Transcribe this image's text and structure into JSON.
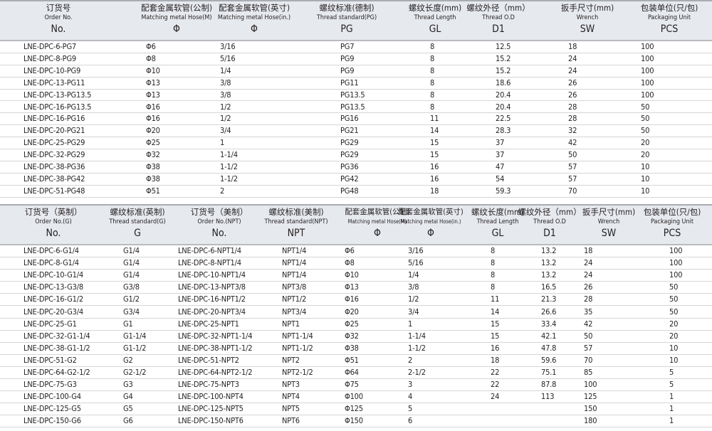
{
  "table1": {
    "headers": [
      {
        "zh": "订货号",
        "en": "Order No.",
        "sym": "No."
      },
      {
        "zh": "配套金属软管(公制)",
        "en": "Matching metal Hose(M)",
        "sym": "Φ"
      },
      {
        "zh": "配套金属软管(英寸)",
        "en": "Matching metal Hose(in.)",
        "sym": "Φ"
      },
      {
        "zh": "螺纹标准(德制)",
        "en": "Thread standard(PG)",
        "sym": "PG"
      },
      {
        "zh": "螺纹长度(mm)",
        "en": "Thread  Length",
        "sym": "GL"
      },
      {
        "zh": "螺纹外径（mm）",
        "en": "Thread O.D",
        "sym": "D1"
      },
      {
        "zh": "扳手尺寸(mm)",
        "en": "Wrench",
        "sym": "SW"
      },
      {
        "zh": "包装单位(只/包)",
        "en": "Packaging Unit",
        "sym": "PCS"
      }
    ],
    "rows": [
      [
        "LNE-DPC-6-PG7",
        "Φ6",
        "3/16",
        "PG7",
        "8",
        "12.5",
        "18",
        "100"
      ],
      [
        "LNE-DPC-8-PG9",
        "Φ8",
        "5/16",
        "PG9",
        "8",
        "15.2",
        "24",
        "100"
      ],
      [
        "LNE-DPC-10-PG9",
        "Φ10",
        "1/4",
        "PG9",
        "8",
        "15.2",
        "24",
        "100"
      ],
      [
        "LNE-DPC-13-PG11",
        "Φ13",
        "3/8",
        "PG11",
        "8",
        "18.6",
        "26",
        "100"
      ],
      [
        "LNE-DPC-13-PG13.5",
        "Φ13",
        "3/8",
        "PG13.5",
        "8",
        "20.4",
        "26",
        "100"
      ],
      [
        "LNE-DPC-16-PG13.5",
        "Φ16",
        "1/2",
        "PG13.5",
        "8",
        "20.4",
        "28",
        "50"
      ],
      [
        "LNE-DPC-16-PG16",
        "Φ16",
        "1/2",
        "PG16",
        "11",
        "22.5",
        "28",
        "50"
      ],
      [
        "LNE-DPC-20-PG21",
        "Φ20",
        "3/4",
        "PG21",
        "14",
        "28.3",
        "32",
        "50"
      ],
      [
        "LNE-DPC-25-PG29",
        "Φ25",
        "1",
        "PG29",
        "15",
        "37",
        "42",
        "20"
      ],
      [
        "LNE-DPC-32-PG29",
        "Φ32",
        "1-1/4",
        "PG29",
        "15",
        "37",
        "50",
        "20"
      ],
      [
        "LNE-DPC-38-PG36",
        "Φ38",
        "1-1/2",
        "PG36",
        "16",
        "47",
        "57",
        "10"
      ],
      [
        "LNE-DPC-38-PG42",
        "Φ38",
        "1-1/2",
        "PG42",
        "16",
        "54",
        "57",
        "10"
      ],
      [
        "LNE-DPC-51-PG48",
        "Φ51",
        "2",
        "PG48",
        "18",
        "59.3",
        "70",
        "10"
      ]
    ]
  },
  "table2": {
    "headers": [
      {
        "zh": "订货号（英制）",
        "en": "Order No.(G)",
        "sym": "No."
      },
      {
        "zh": "螺纹标准(英制)",
        "en": "Thread standard(G)",
        "sym": "G"
      },
      {
        "zh": "订货号（美制）",
        "en": "Order No.(NPT)",
        "sym": "No."
      },
      {
        "zh": "螺纹标准(美制)",
        "en": "Thread standard(NPT)",
        "sym": "NPT"
      },
      {
        "zh": "配套金属软管(公制)",
        "en": "Matching metal Hose(M)",
        "sym": "Φ"
      },
      {
        "zh": "配套金属软管(英寸)",
        "en": "Matching metal Hose(in.)",
        "sym": "Φ"
      },
      {
        "zh": "螺纹长度(mm)",
        "en": "Thread  Length",
        "sym": "GL"
      },
      {
        "zh": "螺纹外径（mm）",
        "en": "Thread O.D",
        "sym": "D1"
      },
      {
        "zh": "扳手尺寸(mm)",
        "en": "Wrench",
        "sym": "SW"
      },
      {
        "zh": "包装单位(只/包)",
        "en": "Packaging Unit",
        "sym": "PCS"
      }
    ],
    "rows": [
      [
        "LNE-DPC-6-G1/4",
        "G1/4",
        "LNE-DPC-6-NPT1/4",
        "NPT1/4",
        "Φ6",
        "3/16",
        "8",
        "13.2",
        "18",
        "100"
      ],
      [
        "LNE-DPC-8-G1/4",
        "G1/4",
        "LNE-DPC-8-NPT1/4",
        "NPT1/4",
        "Φ8",
        "5/16",
        "8",
        "13.2",
        "24",
        "100"
      ],
      [
        "LNE-DPC-10-G1/4",
        "G1/4",
        "LNE-DPC-10-NPT1/4",
        "NPT1/4",
        "Φ10",
        "1/4",
        "8",
        "13.2",
        "24",
        "100"
      ],
      [
        "LNE-DPC-13-G3/8",
        "G3/8",
        "LNE-DPC-13-NPT3/8",
        "NPT3/8",
        "Φ13",
        "3/8",
        "8",
        "16.5",
        "26",
        "50"
      ],
      [
        "LNE-DPC-16-G1/2",
        "G1/2",
        "LNE-DPC-16-NPT1/2",
        "NPT1/2",
        "Φ16",
        "1/2",
        "11",
        "21.3",
        "28",
        "50"
      ],
      [
        "LNE-DPC-20-G3/4",
        "G3/4",
        "LNE-DPC-20-NPT3/4",
        "NPT3/4",
        "Φ20",
        "3/4",
        "14",
        "26.6",
        "35",
        "50"
      ],
      [
        "LNE-DPC-25-G1",
        "G1",
        "LNE-DPC-25-NPT1",
        "NPT1",
        "Φ25",
        "1",
        "15",
        "33.4",
        "42",
        "20"
      ],
      [
        "LNE-DPC-32-G1-1/4",
        "G1-1/4",
        "LNE-DPC-32-NPT1-1/4",
        "NPT1-1/4",
        "Φ32",
        "1-1/4",
        "15",
        "42.1",
        "50",
        "20"
      ],
      [
        "LNE-DPC-38-G1-1/2",
        "G1-1/2",
        "LNE-DPC-38-NPT1-1/2",
        "NPT1-1/2",
        "Φ38",
        "1-1/2",
        "16",
        "47.8",
        "57",
        "10"
      ],
      [
        "LNE-DPC-51-G2",
        "G2",
        "LNE-DPC-51-NPT2",
        "NPT2",
        "Φ51",
        "2",
        "18",
        "59.6",
        "70",
        "10"
      ],
      [
        "LNE-DPC-64-G2-1/2",
        "G2-1/2",
        "LNE-DPC-64-NPT2-1/2",
        "NPT2-1/2",
        "Φ64",
        "2-1/2",
        "22",
        "75.1",
        "85",
        "5"
      ],
      [
        "LNE-DPC-75-G3",
        "G3",
        "LNE-DPC-75-NPT3",
        "NPT3",
        "Φ75",
        "3",
        "22",
        "87.8",
        "100",
        "5"
      ],
      [
        "LNE-DPC-100-G4",
        "G4",
        "LNE-DPC-100-NPT4",
        "NPT4",
        "Φ100",
        "4",
        "24",
        "113",
        "125",
        "1"
      ],
      [
        "LNE-DPC-125-G5",
        "G5",
        "LNE-DPC-125-NPT5",
        "NPT5",
        "Φ125",
        "5",
        "",
        "",
        "150",
        "1"
      ],
      [
        "LNE-DPC-150-G6",
        "G6",
        "LNE-DPC-150-NPT6",
        "NPT6",
        "Φ150",
        "6",
        "",
        "",
        "180",
        "1"
      ]
    ]
  }
}
